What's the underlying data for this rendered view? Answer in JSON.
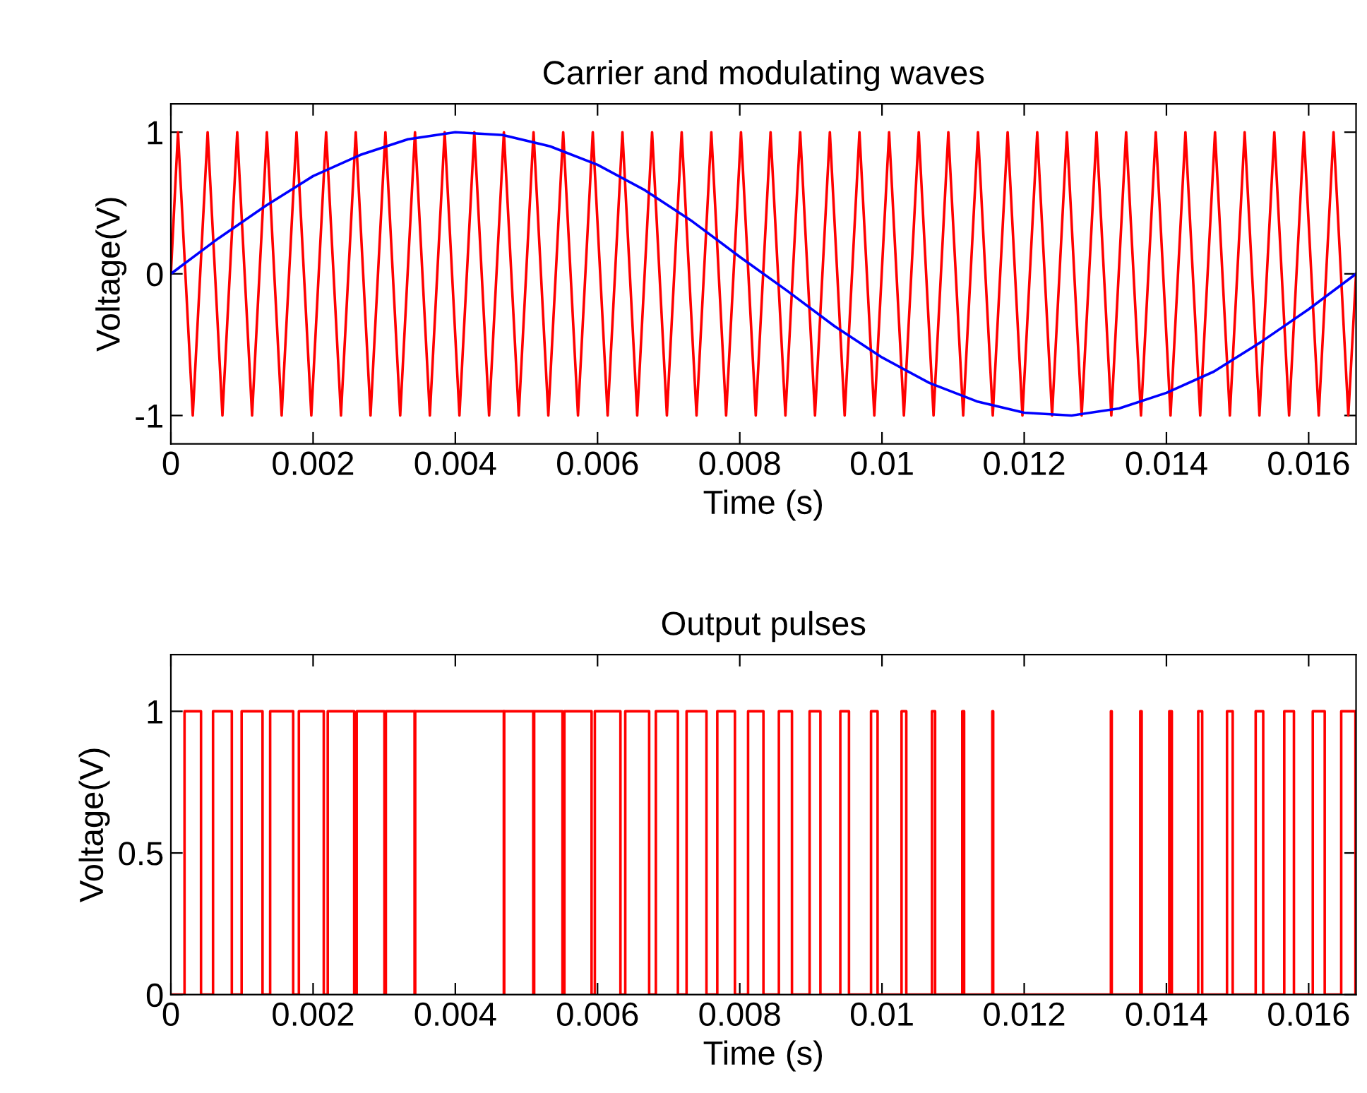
{
  "chart_data": [
    {
      "type": "line",
      "title": "Carrier and modulating waves",
      "xlabel": "Time (s)",
      "ylabel": "Voltage(V)",
      "xlim": [
        0,
        0.0166667
      ],
      "xticks": [
        0,
        0.002,
        0.004,
        0.006,
        0.008,
        0.01,
        0.012,
        0.014,
        0.016
      ],
      "ylim": [
        -1.2,
        1.2
      ],
      "yticks": [
        -1,
        0,
        1
      ],
      "series": [
        {
          "color": "#ff0000",
          "x": [
            0,
            0.0001,
            0.000308,
            0.000517,
            0.000725,
            0.000933,
            0.001142,
            0.00135,
            0.001558,
            0.001767,
            0.001975,
            0.002183,
            0.002392,
            0.0026,
            0.002808,
            0.003017,
            0.003225,
            0.003433,
            0.003642,
            0.00385,
            0.004058,
            0.004267,
            0.004475,
            0.004683,
            0.004892,
            0.0051,
            0.005308,
            0.005517,
            0.005725,
            0.005933,
            0.006142,
            0.00635,
            0.006558,
            0.006767,
            0.006975,
            0.007183,
            0.007392,
            0.0076,
            0.007808,
            0.008017,
            0.008225,
            0.008433,
            0.008642,
            0.00885,
            0.009058,
            0.009267,
            0.009475,
            0.009683,
            0.009892,
            0.0101,
            0.010308,
            0.010517,
            0.010725,
            0.010933,
            0.011142,
            0.01135,
            0.011558,
            0.011767,
            0.011975,
            0.012183,
            0.012392,
            0.0126,
            0.012808,
            0.013017,
            0.013225,
            0.013433,
            0.013642,
            0.01385,
            0.014058,
            0.014267,
            0.014475,
            0.014683,
            0.014892,
            0.0151,
            0.015308,
            0.015517,
            0.015725,
            0.015933,
            0.016142,
            0.01635,
            0.016558,
            0.0166667
          ],
          "values": [
            0,
            1,
            -1,
            1,
            -1,
            1,
            -1,
            1,
            -1,
            1,
            -1,
            1,
            -1,
            1,
            -1,
            1,
            -1,
            1,
            -1,
            1,
            -1,
            1,
            -1,
            1,
            -1,
            1,
            -1,
            1,
            -1,
            1,
            -1,
            1,
            -1,
            1,
            -1,
            1,
            -1,
            1,
            -1,
            1,
            -1,
            1,
            -1,
            1,
            -1,
            1,
            -1,
            1,
            -1,
            1,
            -1,
            1,
            -1,
            1,
            -1,
            1,
            -1,
            1,
            -1,
            1,
            -1,
            1,
            -1,
            1,
            -1,
            1,
            -1,
            1,
            -1,
            1,
            -1,
            1,
            -1,
            1,
            -1,
            1,
            -1,
            1,
            -1,
            1,
            -1,
            0
          ]
        },
        {
          "color": "#0000ff",
          "x": [
            0,
            0.000667,
            0.001333,
            0.002,
            0.002667,
            0.003333,
            0.004,
            0.004667,
            0.005333,
            0.006,
            0.006667,
            0.007333,
            0.008,
            0.008667,
            0.009333,
            0.01,
            0.010667,
            0.011333,
            0.012,
            0.012667,
            0.013333,
            0.014,
            0.014667,
            0.015333,
            0.016,
            0.0166667
          ],
          "values": [
            0,
            0.25,
            0.48,
            0.69,
            0.84,
            0.95,
            1,
            0.98,
            0.9,
            0.77,
            0.59,
            0.37,
            0.12,
            -0.12,
            -0.37,
            -0.59,
            -0.77,
            -0.9,
            -0.98,
            -1,
            -0.95,
            -0.84,
            -0.69,
            -0.48,
            -0.25,
            0
          ]
        }
      ]
    },
    {
      "type": "step",
      "title": "Output pulses",
      "xlabel": "Time (s)",
      "ylabel": "Voltage(V)",
      "xlim": [
        0,
        0.0166667
      ],
      "xticks": [
        0,
        0.002,
        0.004,
        0.006,
        0.008,
        0.01,
        0.012,
        0.014,
        0.016
      ],
      "ylim": [
        0,
        1.2
      ],
      "yticks": [
        0,
        0.5,
        1
      ],
      "series": [
        {
          "color": "#ff0000",
          "x": [
            0,
            0.000192,
            0.000424,
            0.000593,
            0.000857,
            0.000995,
            0.001289,
            0.001396,
            0.00172,
            0.0018,
            0.00215,
            0.002206,
            0.002578,
            0.002613,
            0.003003,
            0.003023,
            0.003427,
            0.003436,
            0.004682,
            0.004688,
            0.005096,
            0.005109,
            0.005507,
            0.005534,
            0.005916,
            0.005962,
            0.006322,
            0.00639,
            0.006726,
            0.00682,
            0.00713,
            0.007252,
            0.007532,
            0.007684,
            0.007932,
            0.008117,
            0.008333,
            0.00855,
            0.008734,
            0.008982,
            0.009134,
            0.009414,
            0.009536,
            0.009846,
            0.009938,
            0.010275,
            0.010342,
            0.010703,
            0.010747,
            0.011129,
            0.011155,
            0.011552,
            0.011564,
            0.013219,
            0.013231,
            0.013632,
            0.013652,
            0.01404,
            0.014076,
            0.014447,
            0.014503,
            0.014852,
            0.014932,
            0.015255,
            0.015361,
            0.015657,
            0.015793,
            0.016058,
            0.016226,
            0.016458,
            0.016658
          ],
          "values": [
            0,
            1,
            0,
            1,
            0,
            1,
            0,
            1,
            0,
            1,
            0,
            1,
            0,
            1,
            0,
            1,
            0,
            1,
            0,
            1,
            0,
            1,
            0,
            1,
            0,
            1,
            0,
            1,
            0,
            1,
            0,
            1,
            0,
            1,
            0,
            1,
            0,
            1,
            0,
            1,
            0,
            1,
            0,
            1,
            0,
            1,
            0,
            1,
            0,
            1,
            0,
            1,
            0,
            1,
            0,
            1,
            0,
            1,
            0,
            1,
            0,
            1,
            0,
            1,
            0,
            1,
            0,
            1,
            0,
            1,
            0
          ]
        }
      ]
    }
  ]
}
